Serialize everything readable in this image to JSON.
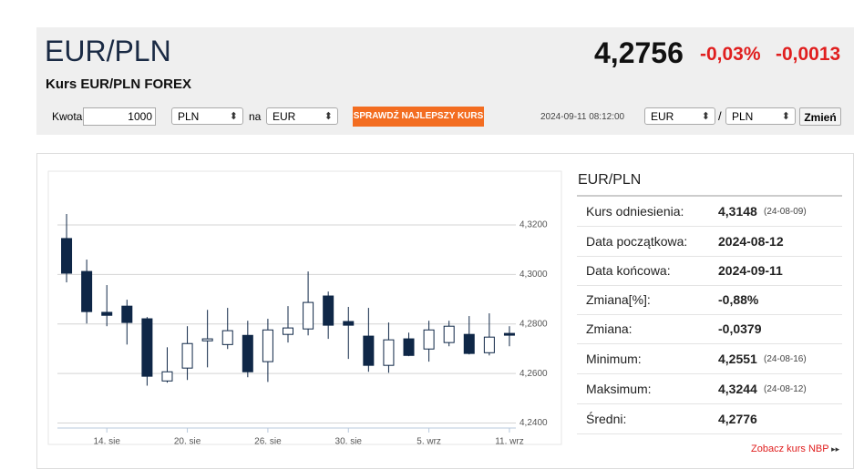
{
  "header": {
    "pair": "EUR/PLN",
    "subtitle": "Kurs EUR/PLN FOREX",
    "price": "4,2756",
    "change_pct": "-0,03%",
    "change": "-0,0013"
  },
  "converter": {
    "amount_label": "Kwota",
    "amount": "1000",
    "from": "PLN",
    "to_label": "na",
    "to": "EUR",
    "button": "SPRAWDŹ NAJLEPSZY KURS",
    "timestamp": "2024-09-11 08:12:00",
    "pair_from": "EUR",
    "separator": "/",
    "pair_to": "PLN",
    "change_button": "Zmień"
  },
  "chart_data": {
    "type": "candlestick",
    "categories": [
      null,
      null,
      "14. sie",
      null,
      null,
      null,
      "20. sie",
      null,
      null,
      null,
      "26. sie",
      null,
      null,
      null,
      "30. sie",
      null,
      null,
      null,
      "5. wrz",
      null,
      null,
      null,
      "11. wrz"
    ],
    "open": [
      4.3145,
      4.3012,
      4.2847,
      4.2872,
      4.2821,
      4.257,
      4.2622,
      4.2732,
      4.2717,
      4.2754,
      4.2648,
      4.2758,
      4.278,
      4.2913,
      4.281,
      4.2751,
      4.2633,
      4.274,
      4.2699,
      4.2725,
      4.2758,
      4.2684,
      4.2762
    ],
    "high": [
      4.3244,
      4.306,
      4.2957,
      4.2898,
      4.2828,
      4.2706,
      4.2791,
      4.2857,
      4.2865,
      4.2813,
      4.2821,
      4.2872,
      4.3012,
      4.2931,
      4.2869,
      4.2865,
      4.2806,
      4.2765,
      4.2813,
      4.2813,
      4.2832,
      4.2843,
      4.2791
    ],
    "low": [
      4.2968,
      4.2802,
      4.2791,
      4.2717,
      4.2551,
      4.2563,
      4.2574,
      4.2625,
      4.2699,
      4.2585,
      4.2566,
      4.2725,
      4.2754,
      4.274,
      4.2659,
      4.2607,
      4.2603,
      4.267,
      4.2648,
      4.271,
      4.2677,
      4.2673,
      4.271
    ],
    "close": [
      4.3005,
      4.285,
      4.2835,
      4.2806,
      4.2589,
      4.2607,
      4.2721,
      4.274,
      4.2773,
      4.2607,
      4.2776,
      4.2784,
      4.2887,
      4.2795,
      4.2795,
      4.2633,
      4.2736,
      4.2673,
      4.2776,
      4.2791,
      4.2681,
      4.2747,
      4.2756
    ],
    "up_color": "#ffffff",
    "down_color": "#0f2747",
    "line_color": "#0f2747",
    "ylim": [
      4.238,
      4.338
    ],
    "yticks": [
      {
        "value": 4.24,
        "label": "4,2400"
      },
      {
        "value": 4.26,
        "label": "4,2600"
      },
      {
        "value": 4.28,
        "label": "4,2800"
      },
      {
        "value": 4.3,
        "label": "4,3000"
      },
      {
        "value": 4.32,
        "label": "4,3200"
      }
    ],
    "grid": true
  },
  "stats": {
    "title": "EUR/PLN",
    "rows": [
      {
        "label": "Kurs odniesienia:",
        "value": "4,3148",
        "date": "(24-08-09)"
      },
      {
        "label": "Data początkowa:",
        "value": "2024-08-12"
      },
      {
        "label": "Data końcowa:",
        "value": "2024-09-11"
      },
      {
        "label": "Zmiana[%]:",
        "value": "-0,88%"
      },
      {
        "label": "Zmiana:",
        "value": "-0,0379"
      },
      {
        "label": "Minimum:",
        "value": "4,2551",
        "date": "(24-08-16)"
      },
      {
        "label": "Maksimum:",
        "value": "4,3244",
        "date": "(24-08-12)"
      },
      {
        "label": "Średni:",
        "value": "4,2776"
      }
    ]
  },
  "nbp_link": "Zobacz kurs NBP"
}
